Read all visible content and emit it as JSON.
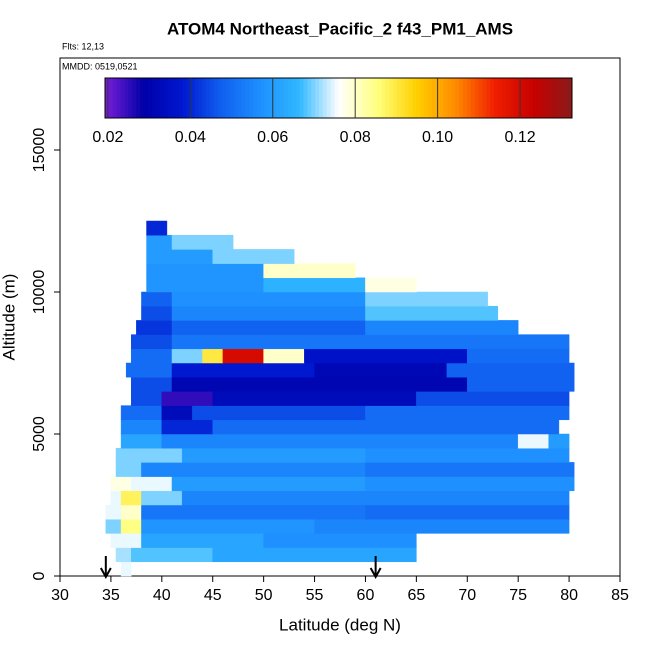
{
  "chart_data": {
    "type": "heatmap",
    "title": "ATOM4 Northeast_Pacific_2 f43_PM1_AMS",
    "notes": [
      "Flts: 12,13",
      "MMDD: 0519,0521"
    ],
    "x_label": "Latitude (deg N)",
    "y_label": "Altitude (m)",
    "xlim": [
      30,
      85
    ],
    "ylim": [
      0,
      18240
    ],
    "xticks": [
      30,
      35,
      40,
      45,
      50,
      55,
      60,
      65,
      70,
      75,
      80,
      85
    ],
    "yticks": [
      0,
      5000,
      10000,
      15000
    ],
    "clim": [
      0.0193,
      0.1326
    ],
    "cticks": [
      0.02,
      0.04,
      0.06,
      0.08,
      {
        "value": 0.1,
        "label": "0.10"
      },
      0.12
    ],
    "colors": [
      "#7b1fd8",
      "#0000a8",
      "#0018d0",
      "#1060f0",
      "#1e90ff",
      "#30b8ff",
      "#ffffff",
      "#ffff80",
      "#ffd000",
      "#ff8c00",
      "#f02000",
      "#c80000",
      "#8b1a1a"
    ],
    "arrows": [
      34.5,
      61
    ],
    "rows": [
      {
        "alt": [
          0,
          500
        ],
        "cells": [
          [
            36,
            37,
            0.075
          ]
        ]
      },
      {
        "alt": [
          500,
          1000
        ],
        "cells": [
          [
            35.5,
            37,
            0.072
          ],
          [
            37,
            45,
            0.068
          ],
          [
            45,
            65,
            0.062
          ]
        ]
      },
      {
        "alt": [
          1000,
          1500
        ],
        "cells": [
          [
            35,
            38,
            0.075
          ],
          [
            38,
            50,
            0.062
          ],
          [
            50,
            65,
            0.057
          ]
        ]
      },
      {
        "alt": [
          1500,
          2000
        ],
        "cells": [
          [
            34.5,
            36,
            0.07
          ],
          [
            36,
            38,
            0.085
          ],
          [
            38,
            55,
            0.058
          ],
          [
            55,
            80,
            0.055
          ]
        ]
      },
      {
        "alt": [
          2000,
          2500
        ],
        "cells": [
          [
            34.5,
            36,
            0.075
          ],
          [
            36,
            38,
            0.08
          ],
          [
            38,
            60,
            0.052
          ],
          [
            60,
            80,
            0.05
          ]
        ]
      },
      {
        "alt": [
          2500,
          3000
        ],
        "cells": [
          [
            35,
            36,
            0.075
          ],
          [
            36,
            38,
            0.088
          ],
          [
            38,
            42,
            0.07
          ],
          [
            42,
            80,
            0.055
          ]
        ]
      },
      {
        "alt": [
          3000,
          3500
        ],
        "cells": [
          [
            35,
            37,
            0.078
          ],
          [
            37,
            41,
            0.075
          ],
          [
            41,
            60,
            0.06
          ],
          [
            60,
            80.5,
            0.057
          ]
        ]
      },
      {
        "alt": [
          3500,
          4000
        ],
        "cells": [
          [
            35.5,
            38,
            0.07
          ],
          [
            38,
            60,
            0.055
          ],
          [
            60,
            80.5,
            0.052
          ]
        ]
      },
      {
        "alt": [
          4000,
          4500
        ],
        "cells": [
          [
            35.5,
            42,
            0.07
          ],
          [
            42,
            60,
            0.06
          ],
          [
            60,
            80,
            0.057
          ]
        ]
      },
      {
        "alt": [
          4500,
          5000
        ],
        "cells": [
          [
            36,
            40,
            0.062
          ],
          [
            40,
            75,
            0.055
          ],
          [
            75,
            78,
            0.075
          ],
          [
            78,
            80,
            0.06
          ]
        ]
      },
      {
        "alt": [
          5000,
          5500
        ],
        "cells": [
          [
            36,
            40,
            0.055
          ],
          [
            40,
            45,
            0.04
          ],
          [
            45,
            79,
            0.05
          ]
        ]
      },
      {
        "alt": [
          5500,
          6000
        ],
        "cells": [
          [
            36,
            40,
            0.05
          ],
          [
            40,
            43,
            0.033
          ],
          [
            43,
            60,
            0.045
          ],
          [
            60,
            80,
            0.05
          ]
        ]
      },
      {
        "alt": [
          6000,
          6500
        ],
        "cells": [
          [
            37,
            40,
            0.045
          ],
          [
            40,
            45,
            0.025
          ],
          [
            45,
            65,
            0.033
          ],
          [
            65,
            80,
            0.045
          ]
        ]
      },
      {
        "alt": [
          6500,
          7000
        ],
        "cells": [
          [
            37,
            41,
            0.045
          ],
          [
            41,
            70,
            0.031
          ],
          [
            70,
            80.5,
            0.048
          ]
        ]
      },
      {
        "alt": [
          7000,
          7500
        ],
        "cells": [
          [
            36.5,
            41,
            0.05
          ],
          [
            41,
            55,
            0.038
          ],
          [
            55,
            68,
            0.032
          ],
          [
            68,
            80.5,
            0.048
          ]
        ]
      },
      {
        "alt": [
          7500,
          8000
        ],
        "cells": [
          [
            37,
            41,
            0.05
          ],
          [
            41,
            44,
            0.07
          ],
          [
            44,
            46,
            0.09
          ],
          [
            46,
            50,
            0.12
          ],
          [
            50,
            54,
            0.08
          ],
          [
            54,
            70,
            0.036
          ],
          [
            70,
            80,
            0.05
          ]
        ]
      },
      {
        "alt": [
          8000,
          8500
        ],
        "cells": [
          [
            37,
            41,
            0.045
          ],
          [
            41,
            80,
            0.052
          ]
        ]
      },
      {
        "alt": [
          8500,
          9000
        ],
        "cells": [
          [
            37.5,
            41,
            0.042
          ],
          [
            41,
            60,
            0.048
          ],
          [
            60,
            75,
            0.055
          ]
        ]
      },
      {
        "alt": [
          9000,
          9500
        ],
        "cells": [
          [
            38,
            41,
            0.045
          ],
          [
            41,
            60,
            0.055
          ],
          [
            60,
            73,
            0.068
          ]
        ]
      },
      {
        "alt": [
          9500,
          10000
        ],
        "cells": [
          [
            38,
            41,
            0.048
          ],
          [
            41,
            60,
            0.057
          ],
          [
            60,
            72,
            0.07
          ]
        ]
      },
      {
        "alt": [
          10000,
          10500
        ],
        "cells": [
          [
            38.5,
            50,
            0.058
          ],
          [
            50,
            60,
            0.065
          ],
          [
            60,
            65,
            0.078
          ]
        ]
      },
      {
        "alt": [
          10500,
          11000
        ],
        "cells": [
          [
            38.5,
            50,
            0.058
          ],
          [
            50,
            59,
            0.08
          ]
        ]
      },
      {
        "alt": [
          11000,
          11500
        ],
        "cells": [
          [
            38.5,
            45,
            0.06
          ],
          [
            45,
            53,
            0.07
          ]
        ]
      },
      {
        "alt": [
          11500,
          12000
        ],
        "cells": [
          [
            38.5,
            41,
            0.06
          ],
          [
            41,
            47,
            0.07
          ]
        ]
      },
      {
        "alt": [
          12000,
          12500
        ],
        "cells": [
          [
            38.5,
            40.5,
            0.04
          ]
        ]
      }
    ]
  }
}
